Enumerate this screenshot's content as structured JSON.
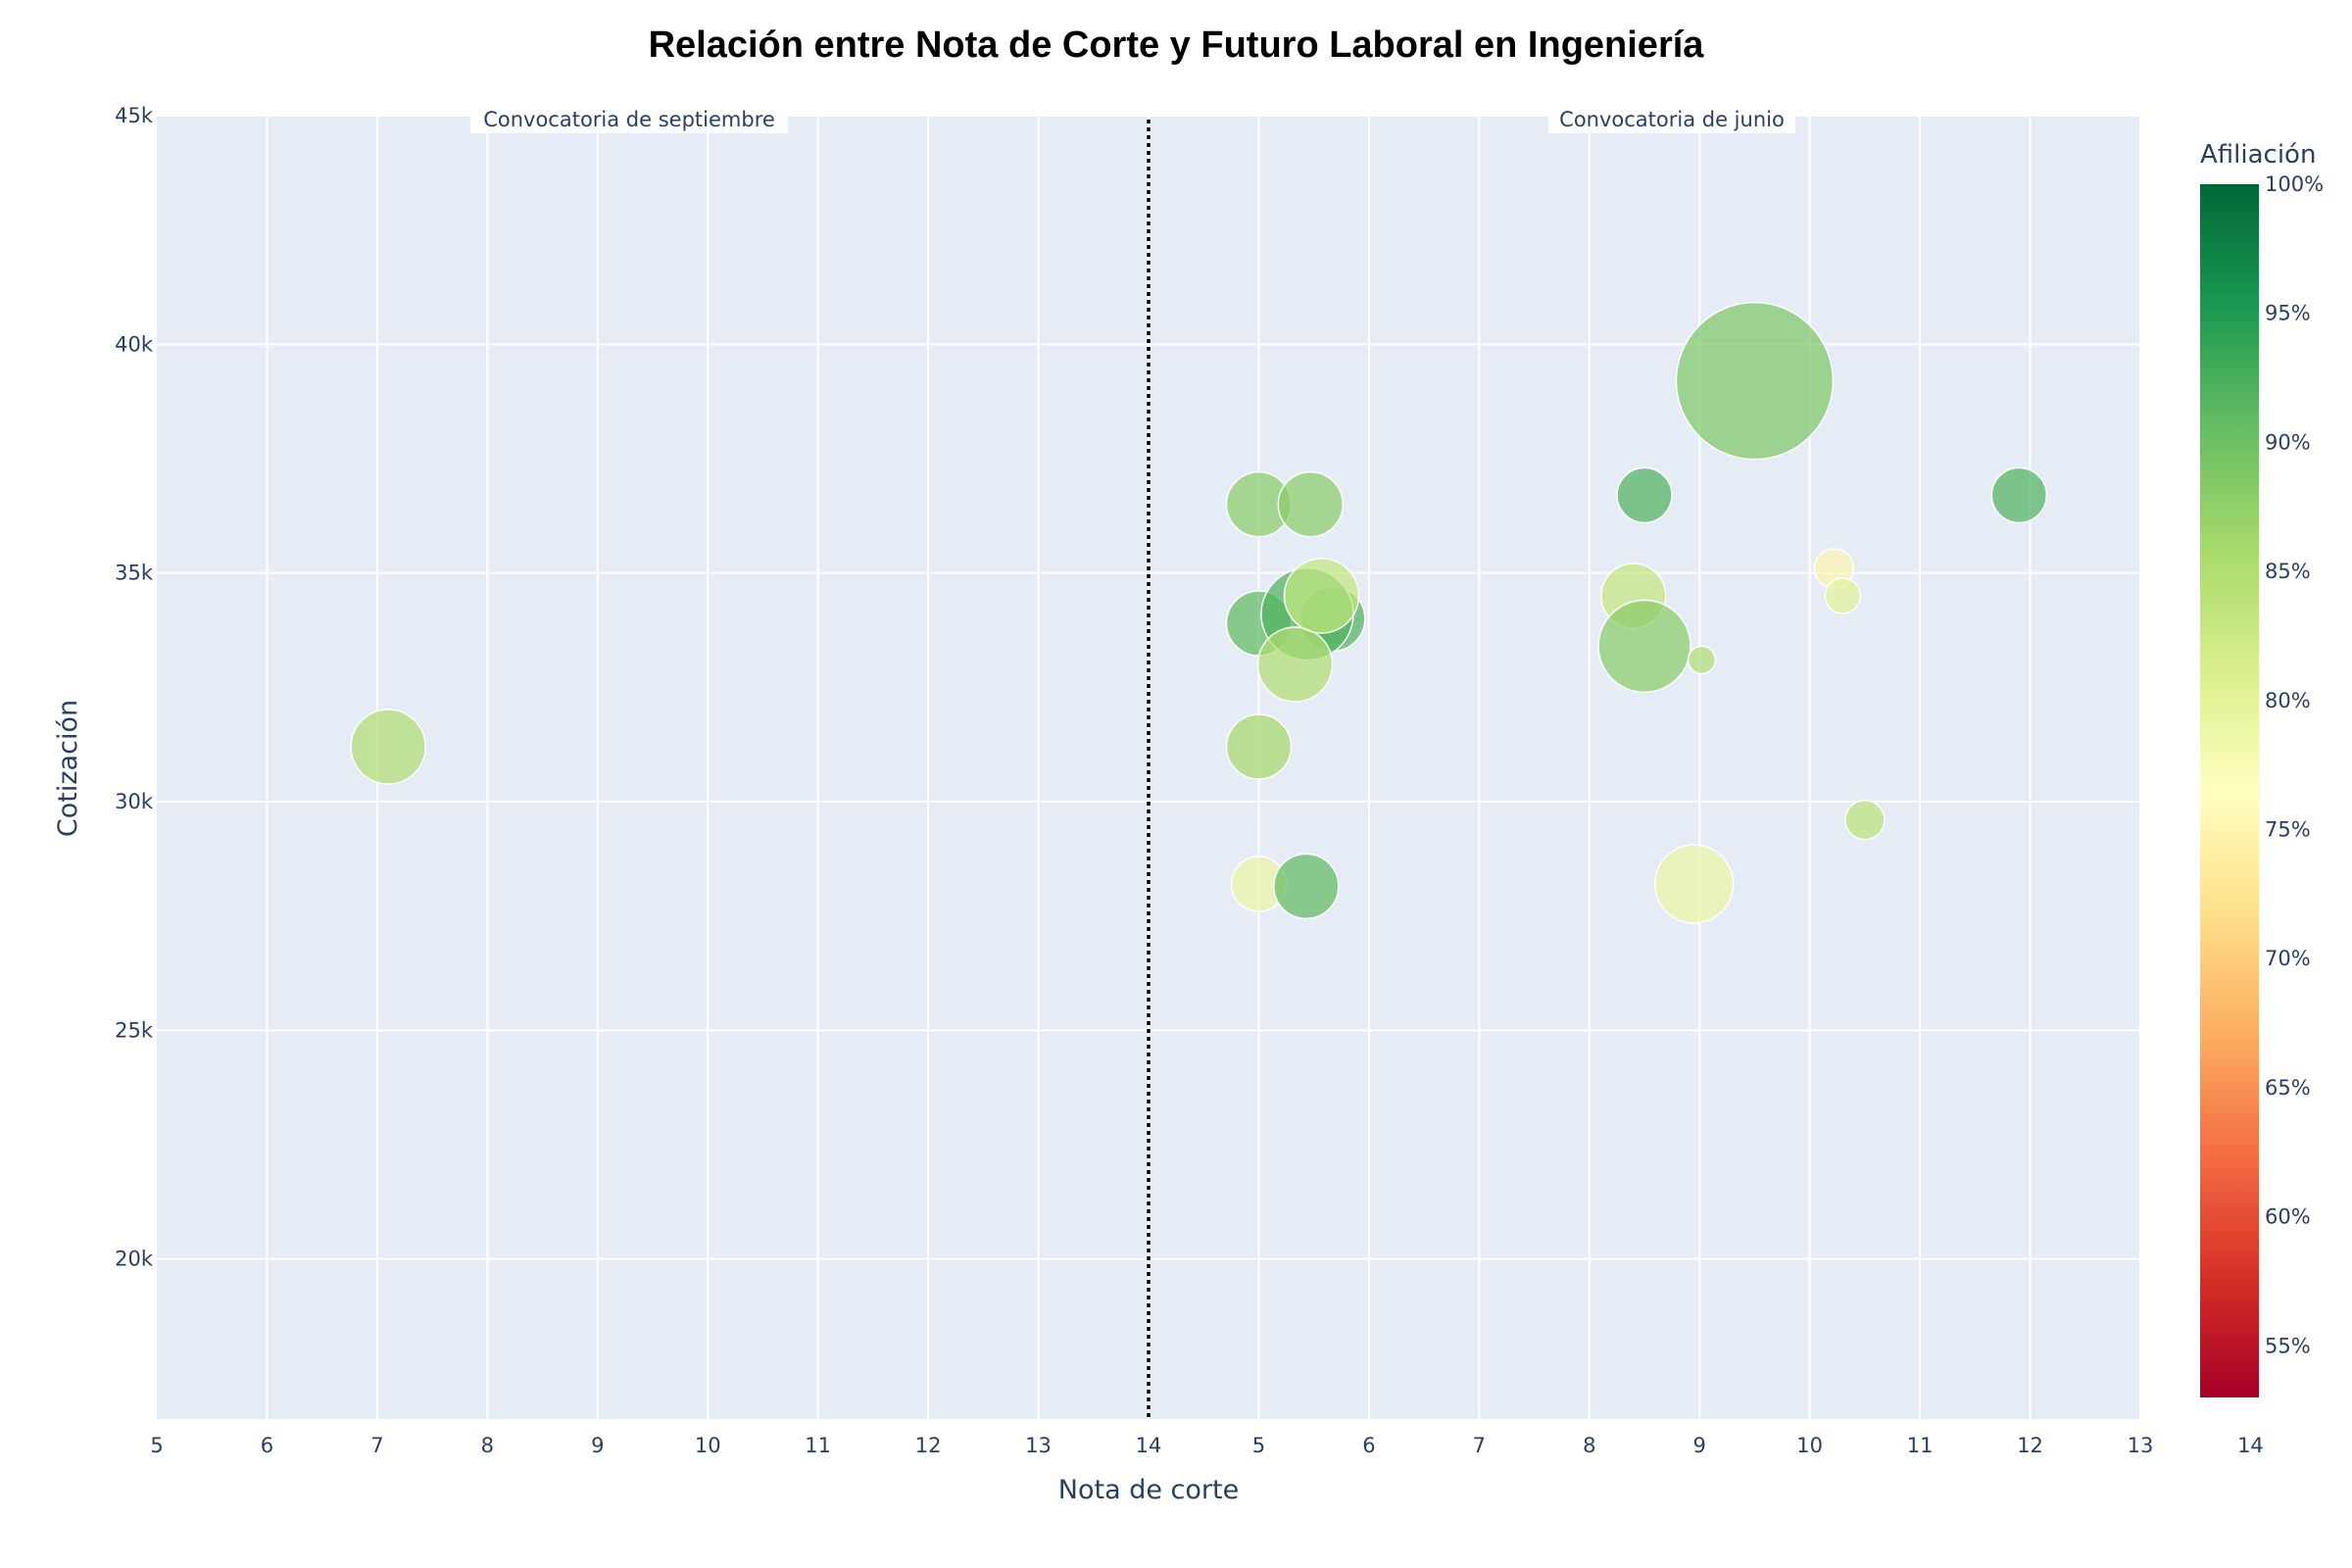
{
  "chart_data": {
    "type": "scatter",
    "title": "Relación entre Nota de Corte y Futuro Laboral en Ingeniería",
    "xlabel": "Nota de corte",
    "ylabel": "Cotización",
    "xlim": [
      5,
      14
    ],
    "ylim": [
      16500,
      45000
    ],
    "x_tick_labels": [
      "5",
      "6",
      "7",
      "8",
      "9",
      "10",
      "11",
      "12",
      "13",
      "14",
      "5",
      "6",
      "7",
      "8",
      "9",
      "10",
      "11",
      "12",
      "13",
      "14"
    ],
    "y_tick_labels": [
      "20k",
      "25k",
      "30k",
      "35k",
      "40k",
      "45k"
    ],
    "y_ticks": [
      20000,
      25000,
      30000,
      35000,
      40000,
      45000
    ],
    "grid": true,
    "divider_label_left": "Convocatoria de septiembre",
    "divider_label_right": "Convocatoria de junio",
    "colorbar": {
      "title": "Afiliación",
      "range": [
        0.53,
        1.0
      ],
      "tick_labels": [
        "55%",
        "60%",
        "65%",
        "70%",
        "75%",
        "80%",
        "85%",
        "90%",
        "95%",
        "100%"
      ],
      "ticks": [
        0.55,
        0.6,
        0.65,
        0.7,
        0.75,
        0.8,
        0.85,
        0.9,
        0.95,
        1.0
      ],
      "colorscale": "RdYlGn"
    },
    "series": [
      {
        "convocatoria": "septiembre",
        "points": [
          {
            "x": 7.1,
            "y": 31200,
            "afiliacion": 0.85,
            "size": 38
          },
          {
            "x": 15.0,
            "y": 36500,
            "afiliacion": 0.88,
            "size": 33
          },
          {
            "x": 15.47,
            "y": 36500,
            "afiliacion": 0.88,
            "size": 33
          },
          {
            "x": 15.0,
            "y": 33900,
            "afiliacion": 0.91,
            "size": 33
          },
          {
            "x": 15.67,
            "y": 34000,
            "afiliacion": 0.92,
            "size": 33
          },
          {
            "x": 15.44,
            "y": 34100,
            "afiliacion": 0.92,
            "size": 47
          },
          {
            "x": 15.33,
            "y": 33000,
            "afiliacion": 0.85,
            "size": 38
          },
          {
            "x": 15.57,
            "y": 34500,
            "afiliacion": 0.83,
            "size": 38
          },
          {
            "x": 15.0,
            "y": 31200,
            "afiliacion": 0.86,
            "size": 33
          },
          {
            "x": 15.0,
            "y": 28200,
            "afiliacion": 0.79,
            "size": 28
          },
          {
            "x": 15.43,
            "y": 28150,
            "afiliacion": 0.91,
            "size": 33
          }
        ]
      },
      {
        "convocatoria": "junio",
        "points": [
          {
            "x": 18.5,
            "y": 36700,
            "afiliacion": 0.92,
            "size": 28
          },
          {
            "x": 19.5,
            "y": 39200,
            "afiliacion": 0.89,
            "size": 80
          },
          {
            "x": 21.9,
            "y": 36700,
            "afiliacion": 0.92,
            "size": 28
          },
          {
            "x": 20.22,
            "y": 35100,
            "afiliacion": 0.75,
            "size": 20
          },
          {
            "x": 20.3,
            "y": 34500,
            "afiliacion": 0.8,
            "size": 18
          },
          {
            "x": 18.4,
            "y": 34500,
            "afiliacion": 0.83,
            "size": 33
          },
          {
            "x": 18.5,
            "y": 33400,
            "afiliacion": 0.88,
            "size": 47
          },
          {
            "x": 19.02,
            "y": 33100,
            "afiliacion": 0.85,
            "size": 14
          },
          {
            "x": 20.5,
            "y": 29600,
            "afiliacion": 0.84,
            "size": 20
          },
          {
            "x": 18.95,
            "y": 28200,
            "afiliacion": 0.79,
            "size": 40
          }
        ]
      }
    ]
  }
}
